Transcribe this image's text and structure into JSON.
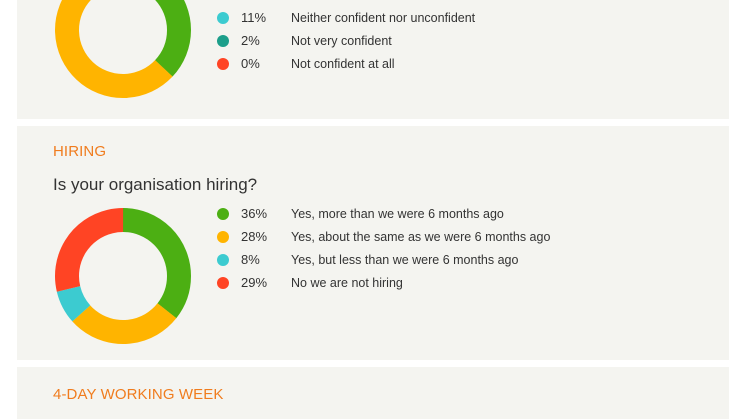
{
  "colors": {
    "green": "#4caf13",
    "amber": "#ffb400",
    "cyan": "#3ccbd0",
    "teal": "#1c9e8a",
    "red": "#ff4424",
    "accent": "#f07c1e"
  },
  "sections": [
    {
      "title": "",
      "question": ""
    },
    {
      "title": "HIRING",
      "question": "Is your organisation hiring?"
    },
    {
      "title": "4-DAY WORKING WEEK",
      "question": ""
    }
  ],
  "chart_data": [
    {
      "type": "pie",
      "title": "",
      "categories": [
        "Not confident at all",
        "Not very confident",
        "Neither confident nor unconfident"
      ],
      "slices": [
        {
          "label": "Neither confident nor unconfident",
          "value": 11,
          "display": "11%",
          "color": "#3ccbd0"
        },
        {
          "label": "Not very confident",
          "value": 2,
          "display": "2%",
          "color": "#1c9e8a"
        },
        {
          "label": "Not confident at all",
          "value": 0,
          "display": "0%",
          "color": "#ff4424"
        }
      ],
      "arcs": [
        {
          "name": "donut-arc-green",
          "start": 0,
          "end": 37,
          "color": "#4caf13"
        },
        {
          "name": "donut-arc-amber",
          "start": 37,
          "end": 89,
          "color": "#ffb400"
        }
      ]
    },
    {
      "type": "pie",
      "title": "Is your organisation hiring?",
      "slices": [
        {
          "label": "Yes, more than we were 6 months ago",
          "value": 36,
          "display": "36%",
          "color": "#4caf13"
        },
        {
          "label": "Yes, about the same as we were 6 months ago",
          "value": 28,
          "display": "28%",
          "color": "#ffb400"
        },
        {
          "label": "Yes, but less than we were 6 months ago",
          "value": 8,
          "display": "8%",
          "color": "#3ccbd0"
        },
        {
          "label": "No we are not hiring",
          "value": 29,
          "display": "29%",
          "color": "#ff4424"
        }
      ]
    }
  ]
}
